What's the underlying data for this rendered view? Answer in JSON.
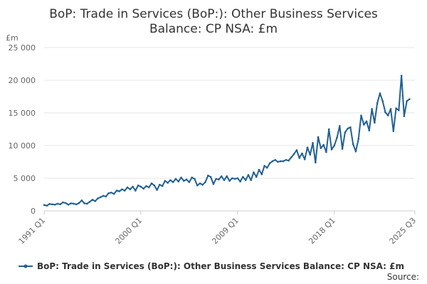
{
  "chart_data": {
    "type": "line",
    "title_lines": [
      "BoP: Trade in Services (BoP:): Other Business Services",
      "Balance: CP NSA: £m"
    ],
    "unit_label": "£m",
    "ylim": [
      0,
      25000
    ],
    "y_ticks": [
      0,
      5000,
      10000,
      15000,
      20000,
      25000
    ],
    "y_tick_labels": [
      "0",
      "5 000",
      "10 000",
      "15 000",
      "20 000",
      "25 000"
    ],
    "x_tick_labels": [
      "1991 Q1",
      "2000 Q1",
      "2009 Q1",
      "2018 Q1",
      "2025 Q3"
    ],
    "x_tick_index": [
      0,
      36,
      72,
      108,
      138
    ],
    "legend": "BoP: Trade in Services (BoP:): Other Business Services Balance: CP NSA: £m",
    "source": "Source:",
    "series": [
      {
        "name": "BoP: Trade in Services (BoP:): Other Business Services Balance: CP NSA: £m",
        "color": "#206095",
        "values": [
          900,
          800,
          1050,
          1000,
          950,
          1100,
          1000,
          1300,
          1200,
          950,
          1150,
          1100,
          1000,
          1200,
          1600,
          1150,
          1100,
          1400,
          1700,
          1500,
          1900,
          2100,
          2300,
          2200,
          2700,
          2800,
          2600,
          3100,
          3000,
          3300,
          3100,
          3600,
          3300,
          3700,
          3100,
          3900,
          3700,
          3400,
          3800,
          3600,
          4200,
          3900,
          3200,
          4000,
          3800,
          4600,
          4300,
          4700,
          4400,
          4900,
          4500,
          5100,
          4600,
          4800,
          4400,
          5100,
          4900,
          3900,
          4200,
          4000,
          4400,
          5400,
          5200,
          4100,
          4900,
          4800,
          5300,
          4700,
          5300,
          4600,
          5000,
          4900,
          5000,
          4500,
          5200,
          4700,
          5500,
          4700,
          5900,
          5200,
          6300,
          5600,
          6900,
          6600,
          7300,
          7600,
          7800,
          7500,
          7600,
          7600,
          7800,
          7700,
          8200,
          8700,
          9300,
          8100,
          8800,
          7900,
          9700,
          8600,
          10400,
          7400,
          11300,
          9600,
          10100,
          9000,
          12500,
          9400,
          10000,
          11200,
          13000,
          9500,
          12000,
          12600,
          12800,
          10200,
          9100,
          11000,
          14600,
          13200,
          13700,
          12300,
          15600,
          13500,
          16500,
          18000,
          16800,
          15100,
          14600,
          15600,
          12200,
          15700,
          15400,
          20700,
          14500,
          16800,
          17100,
          null,
          null
        ]
      }
    ]
  }
}
